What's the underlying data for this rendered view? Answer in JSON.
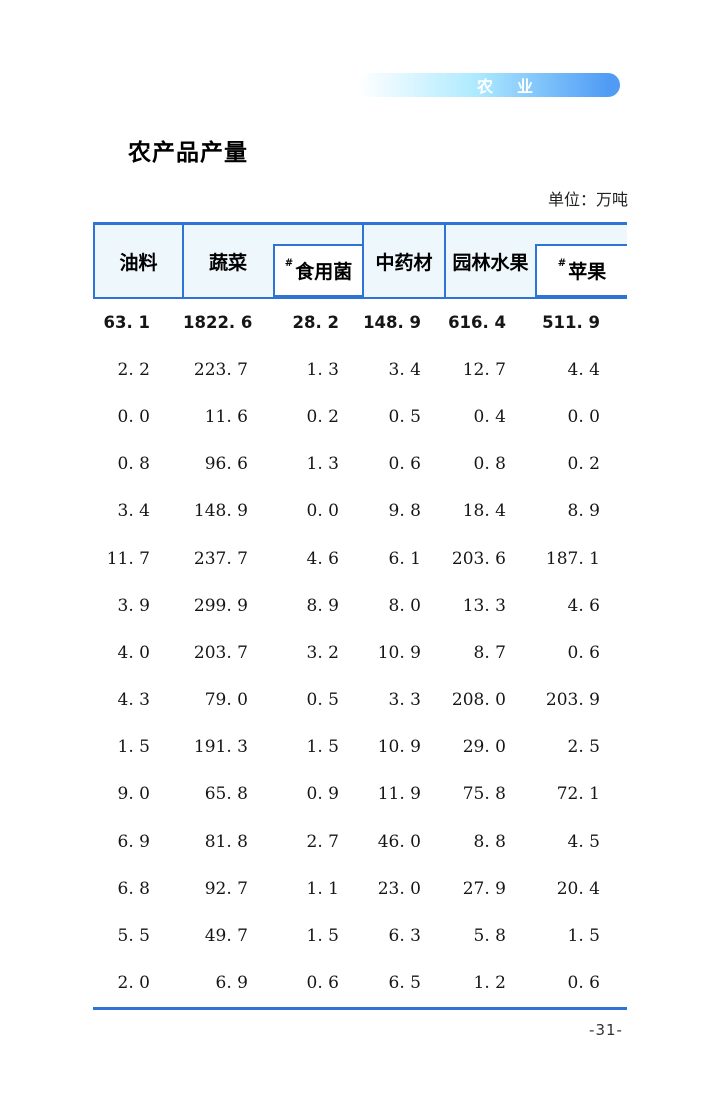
{
  "page": {
    "banner_label": "农　业",
    "title": "农产品产量",
    "unit_note": "单位：万吨",
    "page_number": "-31-"
  },
  "colors": {
    "table_border": "#2e73d6",
    "header_bg": "#eef7fc",
    "banner_gradient_left": "#ffffff",
    "banner_gradient_mid": "#aeeaff",
    "banner_gradient_right": "#4f9bf5",
    "banner_text": "#ffffff"
  },
  "table": {
    "columns": [
      {
        "prefix": "",
        "label": "油料"
      },
      {
        "prefix": "",
        "label": "蔬菜"
      },
      {
        "prefix": "#",
        "label": "食用菌"
      },
      {
        "prefix": "",
        "label": "中药材"
      },
      {
        "prefix": "",
        "label": "园林水果"
      },
      {
        "prefix": "#",
        "label": "苹果"
      }
    ],
    "rows": [
      [
        "63. 1",
        "1822. 6",
        "28. 2",
        "148. 9",
        "616. 4",
        "511. 9"
      ],
      [
        "2. 2",
        "223. 7",
        "1. 3",
        "3. 4",
        "12. 7",
        "4. 4"
      ],
      [
        "0. 0",
        "11. 6",
        "0. 2",
        "0. 5",
        "0. 4",
        "0. 0"
      ],
      [
        "0. 8",
        "96. 6",
        "1. 3",
        "0. 6",
        "0. 8",
        "0. 2"
      ],
      [
        "3. 4",
        "148. 9",
        "0. 0",
        "9. 8",
        "18. 4",
        "8. 9"
      ],
      [
        "11. 7",
        "237. 7",
        "4. 6",
        "6. 1",
        "203. 6",
        "187. 1"
      ],
      [
        "3. 9",
        "299. 9",
        "8. 9",
        "8. 0",
        "13. 3",
        "4. 6"
      ],
      [
        "4. 0",
        "203. 7",
        "3. 2",
        "10. 9",
        "8. 7",
        "0. 6"
      ],
      [
        "4. 3",
        "79. 0",
        "0. 5",
        "3. 3",
        "208. 0",
        "203. 9"
      ],
      [
        "1. 5",
        "191. 3",
        "1. 5",
        "10. 9",
        "29. 0",
        "2. 5"
      ],
      [
        "9. 0",
        "65. 8",
        "0. 9",
        "11. 9",
        "75. 8",
        "72. 1"
      ],
      [
        "6. 9",
        "81. 8",
        "2. 7",
        "46. 0",
        "8. 8",
        "4. 5"
      ],
      [
        "6. 8",
        "92. 7",
        "1. 1",
        "23. 0",
        "27. 9",
        "20. 4"
      ],
      [
        "5. 5",
        "49. 7",
        "1. 5",
        "6. 3",
        "5. 8",
        "1. 5"
      ],
      [
        "2. 0",
        "6. 9",
        "0. 6",
        "6. 5",
        "1. 2",
        "0. 6"
      ]
    ]
  }
}
